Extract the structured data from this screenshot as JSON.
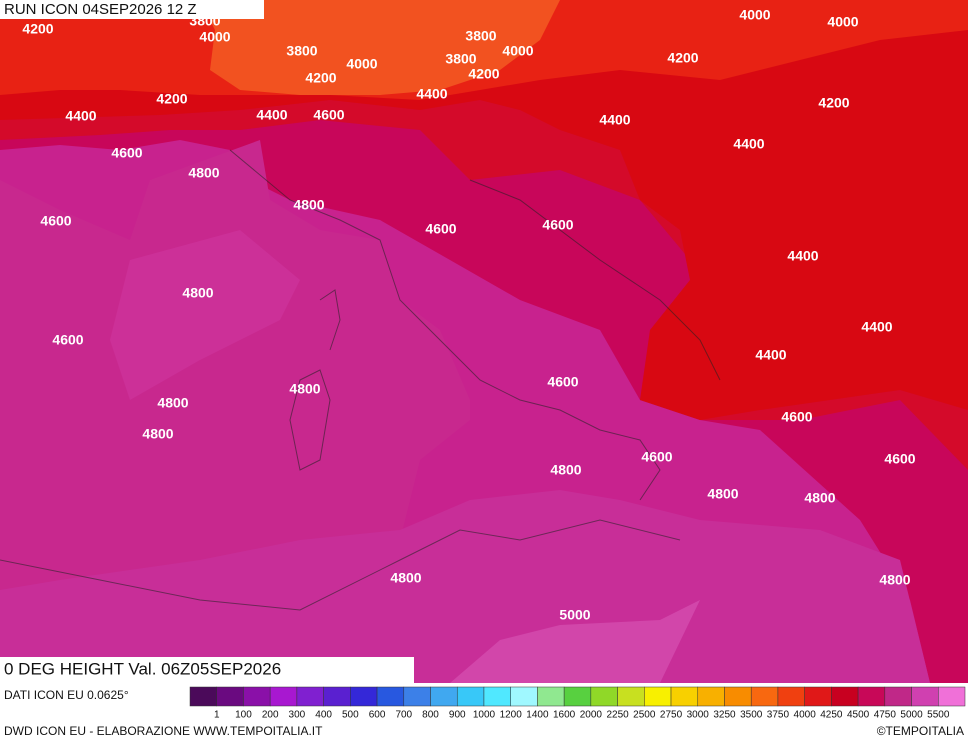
{
  "header": {
    "run": "RUN ICON 04SEP2026 12 Z"
  },
  "map": {
    "contour_labels": [
      "3800",
      "4200",
      "4000",
      "3800",
      "4000",
      "3800",
      "4000",
      "3800",
      "4200",
      "4200",
      "4000",
      "4000",
      "4200",
      "4200",
      "4200",
      "4400",
      "4400",
      "4600",
      "4400",
      "4400",
      "4400",
      "4600",
      "4800",
      "4800",
      "4600",
      "4600",
      "4600",
      "4400",
      "4800",
      "4400",
      "4600",
      "4400",
      "4800",
      "4600",
      "4800",
      "4800",
      "4600",
      "4600",
      "4600",
      "4800",
      "4800",
      "4800",
      "4800",
      "4800",
      "5000"
    ]
  },
  "title": "0 DEG HEIGHT Val. 06Z05SEP2026",
  "legend": {
    "source": "DATI ICON EU 0.0625°",
    "colors": [
      "#4b0a5a",
      "#6a0a80",
      "#8a10a8",
      "#a818d0",
      "#8020d0",
      "#5a20d0",
      "#3428d8",
      "#2858e0",
      "#3c80e8",
      "#40a8f0",
      "#38c8f8",
      "#50e8ff",
      "#a0f8ff",
      "#90e890",
      "#58d040",
      "#90d828",
      "#c8e020",
      "#f8f000",
      "#f8d000",
      "#f8b000",
      "#f88c00",
      "#f86810",
      "#f04010",
      "#e01818",
      "#c80020",
      "#c80858",
      "#c02888",
      "#d040b0",
      "#f070d8"
    ],
    "labels": [
      "1",
      "100",
      "200",
      "300",
      "400",
      "500",
      "600",
      "700",
      "800",
      "900",
      "1000",
      "1200",
      "1400",
      "1600",
      "2000",
      "2250",
      "2500",
      "2750",
      "3000",
      "3250",
      "3500",
      "3750",
      "4000",
      "4250",
      "4500",
      "4750",
      "5000",
      "5500"
    ]
  },
  "footer": {
    "credit": "DWD ICON EU - ELABORAZIONE WWW.TEMPOITALIA.IT",
    "copyright": "©TEMPOITALIA"
  }
}
